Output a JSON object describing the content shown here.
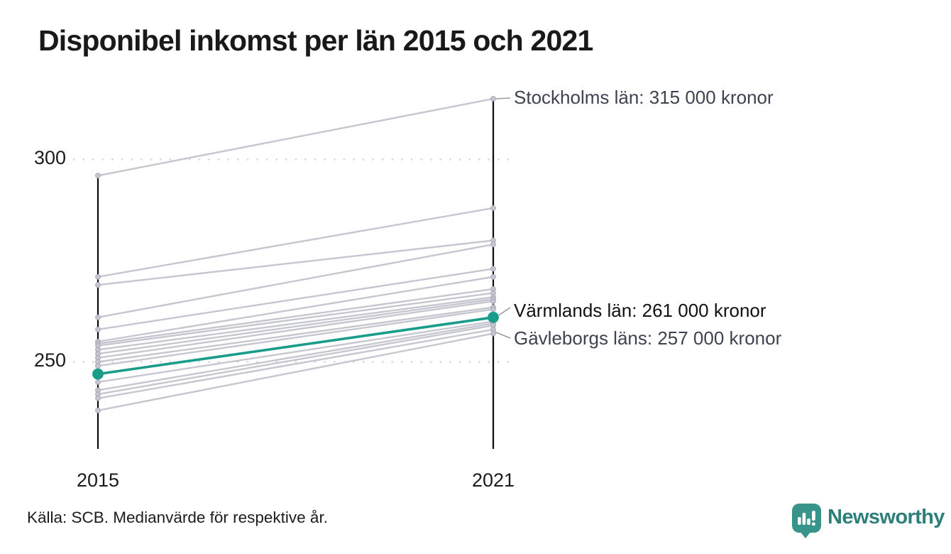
{
  "title": "Disponibel inkomst per län 2015 och 2021",
  "footer": {
    "source": "Källa: SCB. Medianvärde för respektive år.",
    "brand": "Newsworthy"
  },
  "colors": {
    "highlight_teal": "#199c8a",
    "line_gray": "#c6c6d1",
    "dot_gray_fill": "#c6c6d1",
    "dot_gray_stroke": "#a9a9b8",
    "axis_black": "#0a0a0a",
    "grid_dot_gray": "#d8d8de",
    "connector_gray": "#9a9aa8",
    "annotation_gray_text": "#3e4350",
    "annotation_dark_text": "#121212",
    "brand_badge": "#38948b",
    "brand_text": "#2c7f7b"
  },
  "chart_data": {
    "type": "line",
    "variant": "slope",
    "title": "Disponibel inkomst per län 2015 och 2021",
    "x": [
      2015,
      2021
    ],
    "x_labels": [
      "2015",
      "2021"
    ],
    "y_ticks": [
      250,
      300
    ],
    "y_tick_labels": [
      "300",
      "250"
    ],
    "ylim": [
      235,
      318
    ],
    "y_unit": "tusen kronor",
    "grid": "dotted horizontal lines at y ticks",
    "legend": "none",
    "series": [
      {
        "name": "Stockholms län",
        "values": [
          296,
          315
        ],
        "highlight": false
      },
      {
        "name": "",
        "values": [
          271,
          288
        ],
        "highlight": false
      },
      {
        "name": "",
        "values": [
          269,
          280
        ],
        "highlight": false
      },
      {
        "name": "",
        "values": [
          261,
          279
        ],
        "highlight": false
      },
      {
        "name": "",
        "values": [
          258,
          273
        ],
        "highlight": false
      },
      {
        "name": "",
        "values": [
          255,
          271
        ],
        "highlight": false
      },
      {
        "name": "",
        "values": [
          254.5,
          268
        ],
        "highlight": false
      },
      {
        "name": "",
        "values": [
          254,
          267
        ],
        "highlight": false
      },
      {
        "name": "",
        "values": [
          253,
          266
        ],
        "highlight": false
      },
      {
        "name": "",
        "values": [
          252,
          265.5
        ],
        "highlight": false
      },
      {
        "name": "",
        "values": [
          251,
          265
        ],
        "highlight": false
      },
      {
        "name": "",
        "values": [
          250,
          263.5
        ],
        "highlight": false
      },
      {
        "name": "",
        "values": [
          249,
          263
        ],
        "highlight": false
      },
      {
        "name": "Värmlands län",
        "values": [
          247,
          261
        ],
        "highlight": true
      },
      {
        "name": "",
        "values": [
          245,
          260
        ],
        "highlight": false
      },
      {
        "name": "",
        "values": [
          243,
          259.5
        ],
        "highlight": false
      },
      {
        "name": "",
        "values": [
          242,
          259
        ],
        "highlight": false
      },
      {
        "name": "",
        "values": [
          241,
          258
        ],
        "highlight": false
      },
      {
        "name": "Gävleborgs län",
        "values": [
          238,
          257
        ],
        "highlight": false
      }
    ],
    "annotations": [
      {
        "series": "Stockholms län",
        "value_2021": 315,
        "text": "Stockholms län: 315 000 kronor",
        "emphasis": false
      },
      {
        "series": "Värmlands län",
        "value_2021": 261,
        "text": "Värmlands län: 261 000 kronor",
        "emphasis": true
      },
      {
        "series": "Gävleborgs län",
        "value_2021": 257,
        "text": "Gävleborgs läns: 257 000 kronor",
        "emphasis": false
      }
    ]
  }
}
